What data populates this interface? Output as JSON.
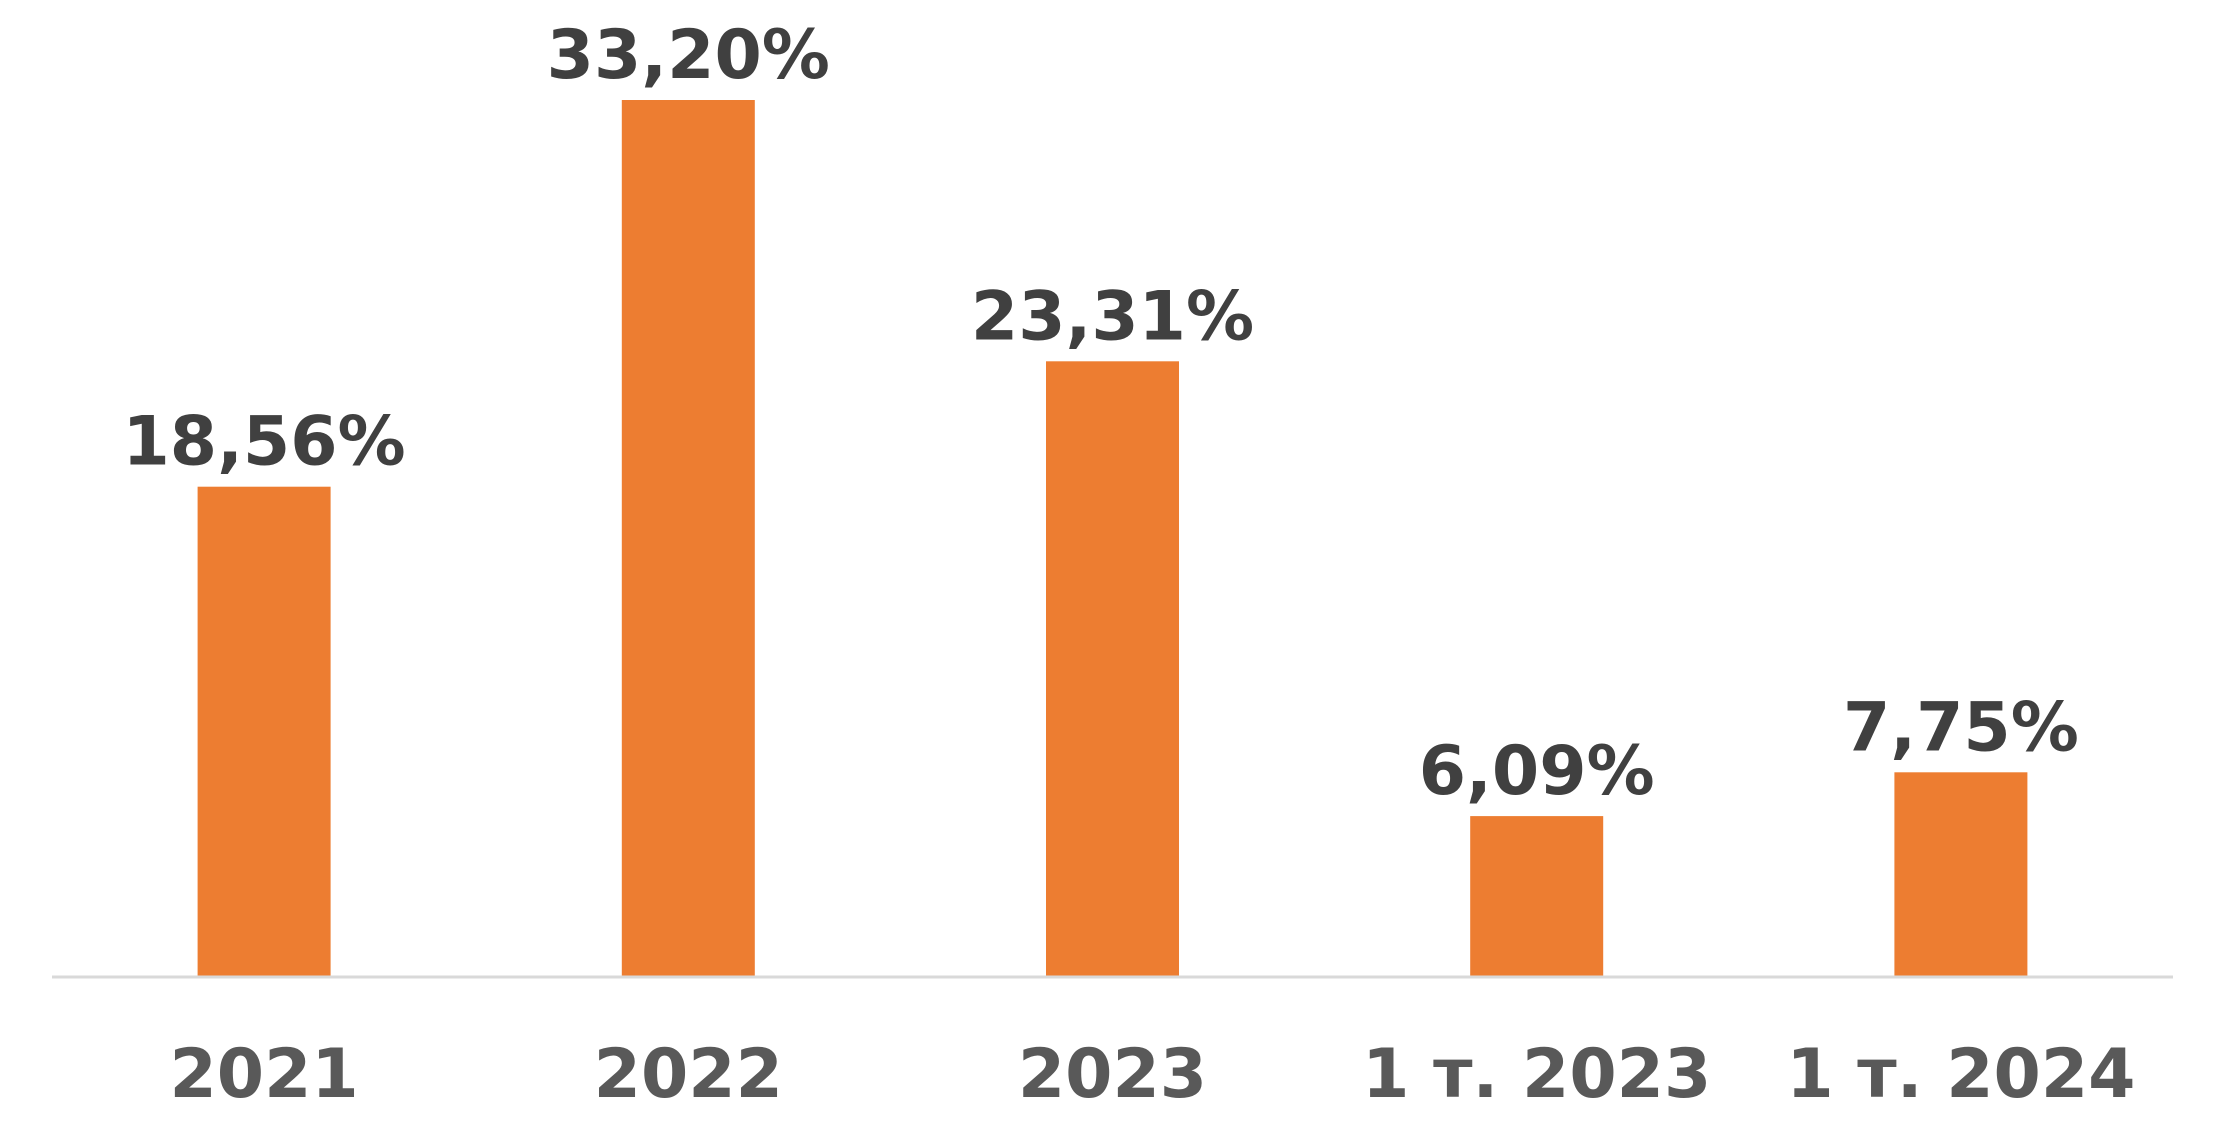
{
  "chart_data": {
    "type": "bar",
    "categories": [
      "2021",
      "2022",
      "2023",
      "1 т. 2023",
      "1 т. 2024"
    ],
    "values": [
      18.56,
      33.2,
      23.31,
      6.09,
      7.75
    ],
    "data_labels": [
      "18,56%",
      "33,20%",
      "23,31%",
      "6,09%",
      "7,75%"
    ],
    "title": "",
    "xlabel": "",
    "ylabel": "",
    "ylim": [
      0,
      33.2
    ],
    "grid": false,
    "legend": "none",
    "colors": {
      "bar": "#ED7D31",
      "data_label": "#404040",
      "tick_label": "#595959",
      "axis": "#D9D9D9"
    }
  }
}
